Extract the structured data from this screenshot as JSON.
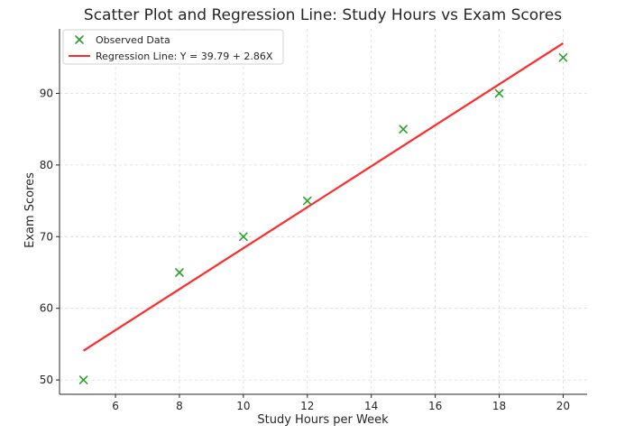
{
  "chart_data": {
    "type": "scatter",
    "title": "Scatter Plot and Regression Line: Study Hours vs Exam Scores",
    "xlabel": "Study Hours per Week",
    "ylabel": "Exam Scores",
    "xlim": [
      4.25,
      20.75
    ],
    "ylim": [
      48.0,
      99.0
    ],
    "xticks": [
      6,
      8,
      10,
      12,
      14,
      16,
      18,
      20
    ],
    "yticks": [
      50,
      60,
      70,
      80,
      90
    ],
    "grid": true,
    "grid_style": "dashed",
    "legend_position": "top-left",
    "series": [
      {
        "name": "Observed Data",
        "kind": "scatter",
        "marker": "x",
        "color": "#2ca02c",
        "x": [
          5,
          8,
          10,
          12,
          15,
          18,
          20
        ],
        "y": [
          50,
          65,
          70,
          75,
          85,
          90,
          95
        ]
      },
      {
        "name": "Regression Line: Y = 39.79 + 2.86X",
        "kind": "line",
        "color": "#ff2a2a",
        "intercept": 39.79,
        "slope": 2.86,
        "x": [
          5,
          20
        ],
        "y": [
          54.09,
          96.99
        ]
      }
    ]
  }
}
